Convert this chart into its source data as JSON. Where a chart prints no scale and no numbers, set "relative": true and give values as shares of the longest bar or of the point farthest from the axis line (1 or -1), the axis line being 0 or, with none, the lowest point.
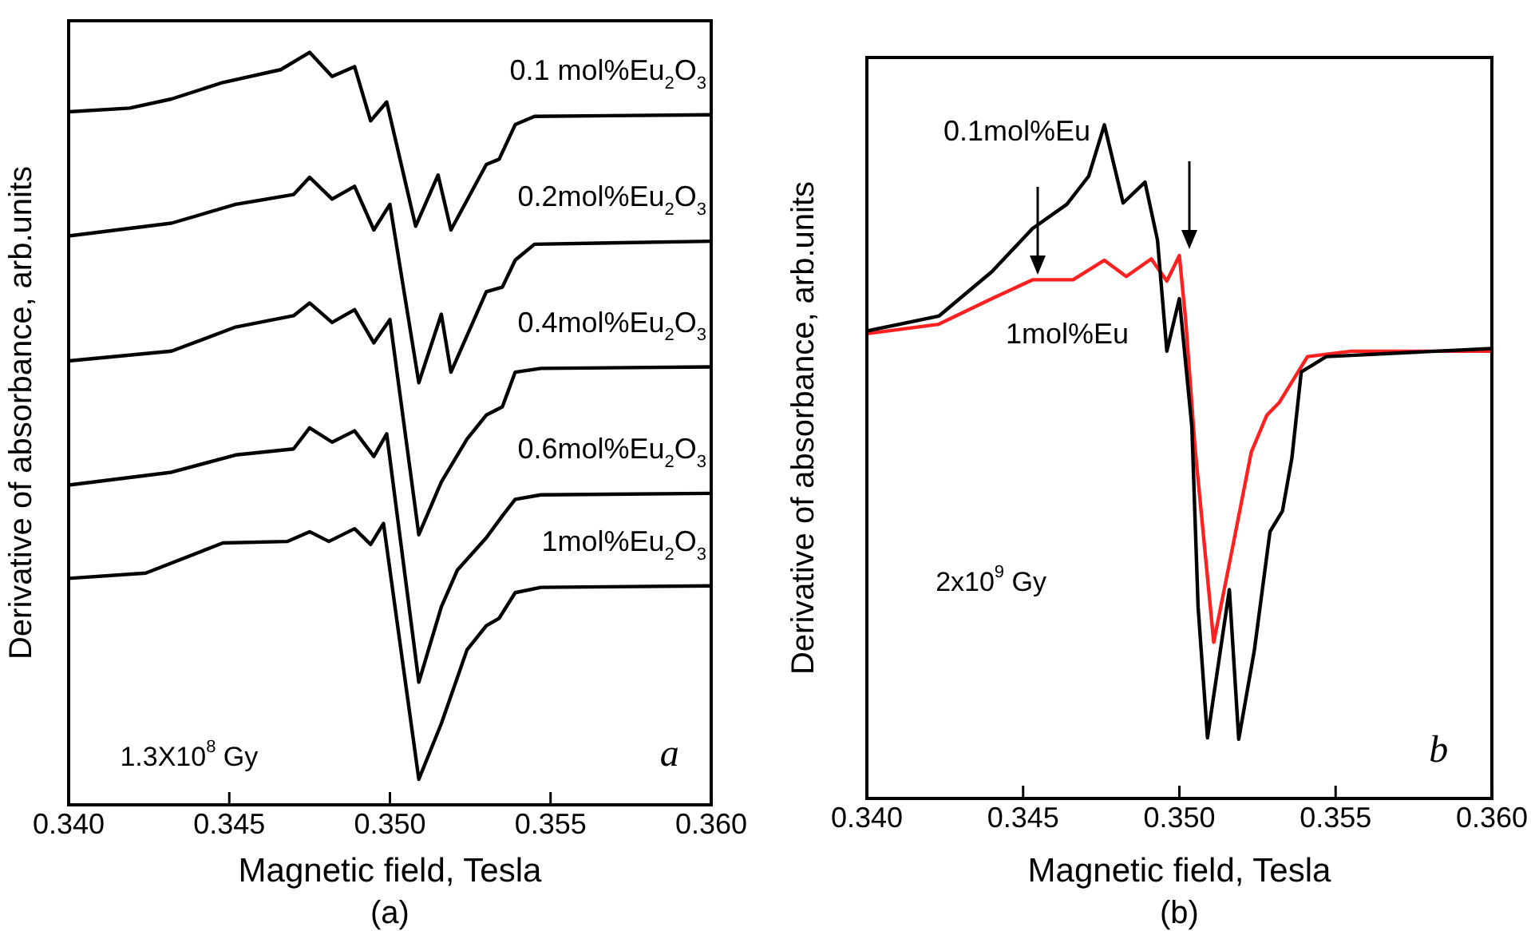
{
  "chart_data": [
    {
      "type": "line",
      "xlabel": "Magnetic field, Tesla",
      "ylabel": "Derivative of absorbance, arb.units",
      "relative": true,
      "legend": false,
      "grid": false,
      "marker": "none",
      "line_style": "solid",
      "xlim": [
        0.34,
        0.36
      ],
      "xticks": [
        {
          "value": 0.34,
          "label": "0.340"
        },
        {
          "value": 0.345,
          "label": "0.345"
        },
        {
          "value": 0.35,
          "label": "0.350"
        },
        {
          "value": 0.355,
          "label": "0.355"
        },
        {
          "value": 0.36,
          "label": "0.360"
        }
      ],
      "series": [
        {
          "name": "0.1 mol%Eu$_{2}$O$_{3}$",
          "color": "#000000",
          "x": [
            0.34,
            0.3419,
            0.3432,
            0.3448,
            0.3466,
            0.3475,
            0.3482,
            0.3489,
            0.3494,
            0.3499,
            0.3508,
            0.3515,
            0.3519,
            0.353,
            0.3534,
            0.3539,
            0.3545,
            0.36
          ],
          "values": [
            0.921,
            0.926,
            0.938,
            0.96,
            0.977,
            1.0,
            0.968,
            0.981,
            0.909,
            0.934,
            0.769,
            0.837,
            0.764,
            0.851,
            0.858,
            0.904,
            0.915,
            0.917
          ]
        },
        {
          "name": "0.2mol%Eu$_{2}$O$_{3}$",
          "color": "#000000",
          "x": [
            0.34,
            0.3432,
            0.3452,
            0.347,
            0.3475,
            0.3482,
            0.3489,
            0.3495,
            0.35,
            0.3509,
            0.3516,
            0.3519,
            0.353,
            0.3535,
            0.3539,
            0.3545,
            0.36
          ],
          "values": [
            0.756,
            0.773,
            0.798,
            0.811,
            0.834,
            0.805,
            0.822,
            0.764,
            0.798,
            0.561,
            0.652,
            0.575,
            0.682,
            0.688,
            0.724,
            0.745,
            0.749
          ]
        },
        {
          "name": "0.4mol%Eu$_{2}$O$_{3}$",
          "color": "#000000",
          "x": [
            0.34,
            0.3432,
            0.3452,
            0.347,
            0.3475,
            0.3482,
            0.3489,
            0.3495,
            0.35,
            0.3509,
            0.3516,
            0.3524,
            0.353,
            0.3535,
            0.3539,
            0.3547,
            0.36
          ],
          "values": [
            0.59,
            0.603,
            0.635,
            0.65,
            0.667,
            0.641,
            0.658,
            0.614,
            0.645,
            0.359,
            0.429,
            0.486,
            0.518,
            0.529,
            0.575,
            0.58,
            0.582
          ]
        },
        {
          "name": "0.6mol%Eu$_{2}$O$_{3}$",
          "color": "#000000",
          "x": [
            0.34,
            0.3432,
            0.3452,
            0.347,
            0.3475,
            0.3482,
            0.3489,
            0.3495,
            0.3499,
            0.3509,
            0.3516,
            0.3521,
            0.353,
            0.3535,
            0.3539,
            0.3547,
            0.36
          ],
          "values": [
            0.425,
            0.442,
            0.465,
            0.473,
            0.501,
            0.482,
            0.497,
            0.463,
            0.493,
            0.163,
            0.263,
            0.312,
            0.355,
            0.384,
            0.406,
            0.412,
            0.414
          ]
        },
        {
          "name": "1mol%Eu$_{2}$O$_{3}$",
          "color": "#000000",
          "x": [
            0.34,
            0.3424,
            0.3448,
            0.3468,
            0.3475,
            0.3481,
            0.3489,
            0.3494,
            0.3498,
            0.3509,
            0.3516,
            0.3524,
            0.353,
            0.3534,
            0.3539,
            0.3547,
            0.36
          ],
          "values": [
            0.301,
            0.308,
            0.348,
            0.35,
            0.363,
            0.35,
            0.367,
            0.346,
            0.374,
            0.034,
            0.108,
            0.206,
            0.238,
            0.248,
            0.282,
            0.289,
            0.291
          ]
        }
      ],
      "annotations": [
        "1.3X10$^{8}$ Gy",
        "a",
        "(a)"
      ]
    },
    {
      "type": "line",
      "xlabel": "Magnetic field, Tesla",
      "ylabel": "Derivative of absorbance, arb.units",
      "relative": true,
      "legend": false,
      "grid": false,
      "marker": "none",
      "line_style": "solid",
      "xlim": [
        0.34,
        0.36
      ],
      "xticks": [
        {
          "value": 0.34,
          "label": "0.340"
        },
        {
          "value": 0.345,
          "label": "0.345"
        },
        {
          "value": 0.35,
          "label": "0.350"
        },
        {
          "value": 0.355,
          "label": "0.355"
        },
        {
          "value": 0.36,
          "label": "0.360"
        }
      ],
      "series": [
        {
          "name": "0.1mol%Eu",
          "color": "#000000",
          "x": [
            0.34,
            0.3423,
            0.344,
            0.3453,
            0.3464,
            0.3471,
            0.3476,
            0.3482,
            0.3489,
            0.3493,
            0.3496,
            0.35,
            0.3504,
            0.3506,
            0.3509,
            0.3516,
            0.3519,
            0.3524,
            0.3529,
            0.3533,
            0.3536,
            0.3539,
            0.3547,
            0.36
          ],
          "values": [
            0.694,
            0.716,
            0.782,
            0.846,
            0.882,
            0.924,
            1.0,
            0.884,
            0.915,
            0.829,
            0.664,
            0.742,
            0.552,
            0.284,
            0.09,
            0.31,
            0.088,
            0.22,
            0.396,
            0.427,
            0.505,
            0.633,
            0.656,
            0.668
          ]
        },
        {
          "name": "1mol%Eu",
          "color": "#ff2020",
          "x": [
            0.34,
            0.3423,
            0.344,
            0.3453,
            0.3466,
            0.3476,
            0.3483,
            0.3491,
            0.3496,
            0.35,
            0.3502,
            0.3505,
            0.3511,
            0.3517,
            0.3523,
            0.3528,
            0.3532,
            0.3541,
            0.3555,
            0.36
          ],
          "values": [
            0.69,
            0.704,
            0.742,
            0.77,
            0.77,
            0.799,
            0.775,
            0.801,
            0.768,
            0.806,
            0.711,
            0.521,
            0.232,
            0.372,
            0.514,
            0.569,
            0.588,
            0.656,
            0.664,
            0.664
          ]
        }
      ],
      "annotations": [
        "2x10$^{9}$ Gy",
        "b",
        "(b)"
      ]
    }
  ]
}
